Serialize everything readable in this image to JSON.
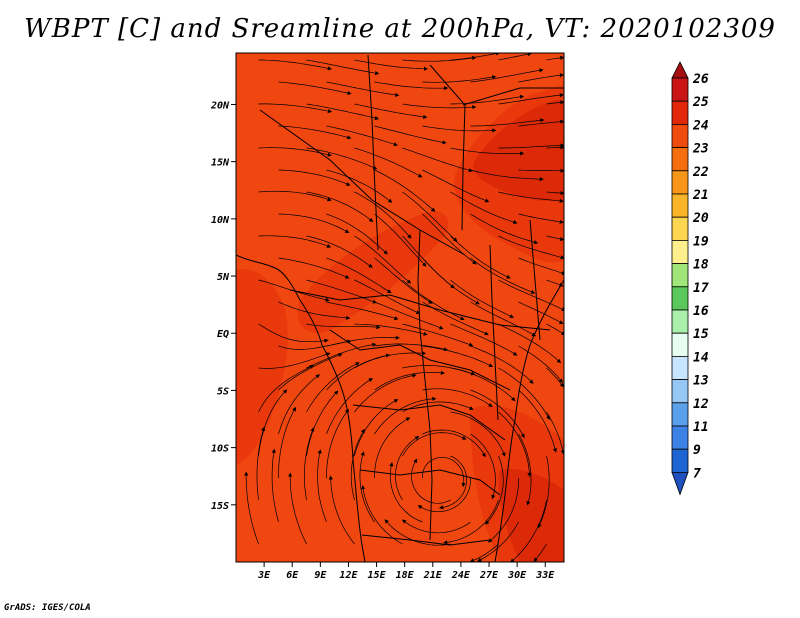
{
  "title": "WBPT [C] and Sreamline at 200hPa, VT: 2020102309",
  "credit": "GrADS: IGES/COLA",
  "map": {
    "lon_range": [
      0,
      35
    ],
    "lat_range": [
      -20,
      24.5
    ],
    "x_ticks": [
      {
        "value": 3,
        "label": "3E"
      },
      {
        "value": 6,
        "label": "6E"
      },
      {
        "value": 9,
        "label": "9E"
      },
      {
        "value": 12,
        "label": "12E"
      },
      {
        "value": 15,
        "label": "15E"
      },
      {
        "value": 18,
        "label": "18E"
      },
      {
        "value": 21,
        "label": "21E"
      },
      {
        "value": 24,
        "label": "24E"
      },
      {
        "value": 27,
        "label": "27E"
      },
      {
        "value": 30,
        "label": "30E"
      },
      {
        "value": 33,
        "label": "33E"
      }
    ],
    "y_ticks": [
      {
        "value": 20,
        "label": "20N"
      },
      {
        "value": 15,
        "label": "15N"
      },
      {
        "value": 10,
        "label": "10N"
      },
      {
        "value": 5,
        "label": "5N"
      },
      {
        "value": 0,
        "label": "EQ"
      },
      {
        "value": -5,
        "label": "5S"
      },
      {
        "value": -10,
        "label": "10S"
      },
      {
        "value": -15,
        "label": "15S"
      }
    ],
    "background_color": "#f04610",
    "contour_colors": {
      "t23": "#e8380c",
      "t24": "#dc2a08"
    }
  },
  "colorbar": {
    "labels": [
      "26",
      "25",
      "24",
      "23",
      "22",
      "21",
      "20",
      "19",
      "18",
      "17",
      "16",
      "15",
      "14",
      "13",
      "12",
      "11",
      "9",
      "7"
    ],
    "colors": [
      "#a50f0f",
      "#c81414",
      "#e1280a",
      "#f04b0f",
      "#f56e10",
      "#f8961a",
      "#fab428",
      "#fcd650",
      "#fef08c",
      "#a0e67a",
      "#5ac85a",
      "#aaf0aa",
      "#e6fff0",
      "#c8e6ff",
      "#96c8f5",
      "#5aa0eb",
      "#3c82e6",
      "#1e64d2",
      "#1e50be"
    ]
  }
}
